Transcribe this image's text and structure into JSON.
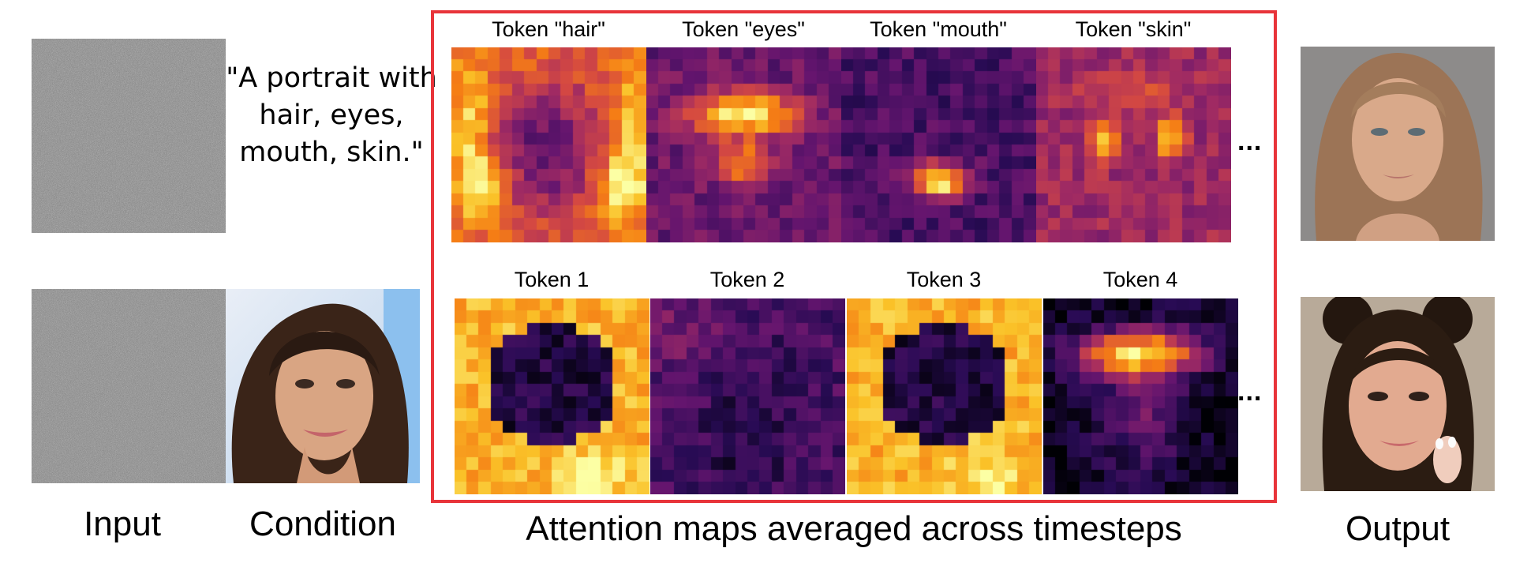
{
  "colors": {
    "frame": "#e8343a",
    "heat_scale": [
      "#000004",
      "#280b54",
      "#65156e",
      "#9f2a63",
      "#d44842",
      "#f57d15",
      "#fac228",
      "#fcffa4"
    ]
  },
  "prompt_text": "\"A portrait with hair, eyes, mouth, skin.\"",
  "labels": {
    "input": "Input",
    "condition": "Condition",
    "attention": "Attention maps averaged across timesteps",
    "output": "Output"
  },
  "continuation_marks": [
    "...",
    "..."
  ],
  "row1_tokens": [
    "Token \"hair\"",
    "Token \"eyes\"",
    "Token \"mouth\"",
    "Token \"skin\""
  ],
  "row2_tokens": [
    "Token 1",
    "Token 2",
    "Token 3",
    "Token 4"
  ],
  "icons": {
    "noise": "gaussian-noise-image",
    "condition_face": "face-photo",
    "output_faces": [
      "generated-face-photo",
      "generated-face-photo"
    ]
  }
}
